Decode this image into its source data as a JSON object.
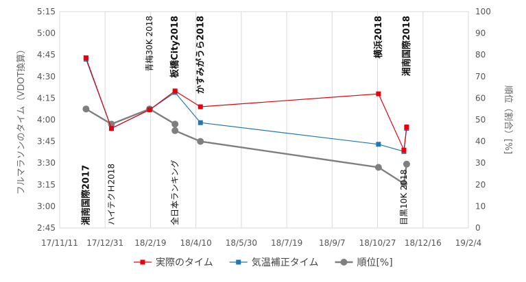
{
  "chart_data": {
    "type": "line",
    "x_axis": {
      "ticks": [
        "17/11/11",
        "17/12/31",
        "18/2/19",
        "18/4/10",
        "18/5/30",
        "18/7/19",
        "18/9/7",
        "18/10/27",
        "18/12/16",
        "19/2/4"
      ]
    },
    "y_left": {
      "label": "フルマラソンのタイム（VDOT換算）",
      "ticks": [
        "2:45",
        "3:00",
        "3:15",
        "3:30",
        "3:45",
        "4:00",
        "4:15",
        "4:30",
        "4:45",
        "5:00",
        "5:15"
      ],
      "range_minutes": [
        165,
        315
      ]
    },
    "y_right": {
      "label": "順位（割合）[%]",
      "ticks": [
        "0",
        "10",
        "20",
        "30",
        "40",
        "50",
        "60",
        "70",
        "80",
        "90",
        "100"
      ],
      "range": [
        0,
        100
      ]
    },
    "grid": "vertical",
    "legend_position": "bottom",
    "series": [
      {
        "name": "実際のタイム",
        "axis": "left",
        "color": "#e8000b",
        "marker": "square",
        "points": [
          {
            "x": "2017-12-10",
            "y": "4:43"
          },
          {
            "x": "2018-01-07",
            "y": "3:54"
          },
          {
            "x": "2018-02-18",
            "y": "4:07"
          },
          {
            "x": "2018-03-18",
            "y": "4:20"
          },
          {
            "x": "2018-04-15",
            "y": "4:09"
          },
          {
            "x": "2018-10-28",
            "y": "4:18"
          },
          {
            "x": "2018-11-25",
            "y": "3:39"
          },
          {
            "x": "2018-11-28",
            "y": "3:55"
          }
        ]
      },
      {
        "name": "気温補正タイム",
        "axis": "left",
        "color": "#1f77b4",
        "marker": "square",
        "points": [
          {
            "x": "2017-12-10",
            "y": "4:42"
          },
          {
            "x": "2018-01-07",
            "y": "3:54"
          },
          {
            "x": "2018-02-18",
            "y": "4:07"
          },
          {
            "x": "2018-03-18",
            "y": "4:19"
          },
          {
            "x": "2018-04-15",
            "y": "3:58"
          },
          {
            "x": "2018-10-28",
            "y": "3:43"
          },
          {
            "x": "2018-11-25",
            "y": "3:38"
          },
          {
            "x": "2018-11-28",
            "y": "3:54"
          }
        ]
      },
      {
        "name": "順位[%]",
        "axis": "right",
        "color": "#7f7f7f",
        "marker": "circle",
        "points": [
          {
            "x": "2017-12-10",
            "y": 55
          },
          {
            "x": "2018-01-07",
            "y": 48
          },
          {
            "x": "2018-02-18",
            "y": 55
          },
          {
            "x": "2018-03-18",
            "y": 48
          },
          {
            "x": "2018-03-18",
            "y": 45
          },
          {
            "x": "2018-04-15",
            "y": 40
          },
          {
            "x": "2018-10-28",
            "y": 28
          },
          {
            "x": "2018-11-25",
            "y": 20.5
          },
          {
            "x": "2018-11-28",
            "y": 29.5
          }
        ]
      }
    ],
    "annotations": [
      {
        "text": "湘南国際2017",
        "x": "2017-12-10",
        "bold": true,
        "place": "low"
      },
      {
        "text": "ハイテクＨ2018",
        "x": "2018-01-07",
        "bold": false,
        "place": "low"
      },
      {
        "text": "青梅30K 2018",
        "x": "2018-02-18",
        "bold": false,
        "place": "high"
      },
      {
        "text": "板橋City2018",
        "x": "2018-03-18",
        "bold": true,
        "place": "high"
      },
      {
        "text": "全日本ランキング",
        "x": "2018-03-18",
        "bold": false,
        "place": "low"
      },
      {
        "text": "かすみがうら2018",
        "x": "2018-04-15",
        "bold": true,
        "place": "high"
      },
      {
        "text": "横浜2018",
        "x": "2018-10-28",
        "bold": true,
        "place": "high"
      },
      {
        "text": "目黒10K 2018",
        "x": "2018-11-25",
        "bold": false,
        "place": "low"
      },
      {
        "text": "湘南国際2018",
        "x": "2018-11-28",
        "bold": true,
        "place": "high"
      }
    ]
  }
}
